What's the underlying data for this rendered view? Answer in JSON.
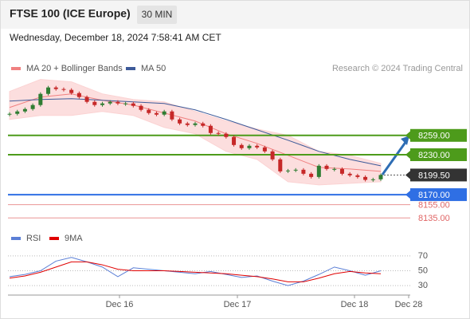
{
  "header": {
    "title": "FTSE 100 (ICE Europe)",
    "interval": "30 MIN",
    "timestamp": "Wednesday, December 18, 2024 7:58:41 AM CET"
  },
  "source": "Research © 2024 Trading Central",
  "xticks": [
    "Dec 16",
    "Dec 17",
    "Dec 18",
    "Dec 28"
  ],
  "chart_data": [
    {
      "type": "candlestick",
      "up_color": "#2f7d32",
      "down_color": "#c62828",
      "close": [
        8291.4,
        8295,
        8298.6,
        8304.6,
        8321.4,
        8331,
        8328.6,
        8327.4,
        8322.6,
        8316.6,
        8309.4,
        8304.6,
        8307,
        8309.4,
        8307,
        8307,
        8303.4,
        8297.4,
        8292.6,
        8290.2,
        8295,
        8283,
        8277,
        8274.6,
        8277,
        8273.4,
        8262.6,
        8261.4,
        8256.6,
        8244.6,
        8239.8,
        8243.4,
        8241,
        8235,
        8223,
        8205,
        8206.2,
        8207.4,
        8201.4,
        8196.6,
        8213.4,
        8208.6,
        8208.6,
        8201.4,
        8199,
        8196.6,
        8192.2,
        8193,
        8199.5
      ],
      "bands": {
        "name": "MA 20 + Bollinger Bands",
        "color": "#f08080",
        "band_color": "#fbd3d3",
        "ma": [
          8301,
          8316.6,
          8321.4,
          8311.8,
          8304.6,
          8292.6,
          8280.6,
          8261.4,
          8247,
          8229,
          8211,
          8208.6,
          8205
        ],
        "upper": [
          8325,
          8343,
          8339.4,
          8321.4,
          8313,
          8309.4,
          8295,
          8280.6,
          8268.6,
          8259,
          8235,
          8229,
          8217
        ],
        "lower": [
          8283,
          8289,
          8289,
          8295,
          8289,
          8271,
          8261.4,
          8235,
          8223,
          8189.4,
          8184.6,
          8187,
          8189.4
        ]
      },
      "ma50": {
        "name": "MA 50",
        "color": "#3d5a99",
        "values": [
          8310.6,
          8313,
          8314.2,
          8311.8,
          8309.4,
          8307,
          8297.4,
          8283,
          8267.4,
          8251.8,
          8235,
          8223,
          8213.4
        ]
      },
      "ylim": [
        8100,
        8345
      ],
      "levels": {
        "values": [
          8259,
          8230,
          8170,
          8155,
          8135
        ],
        "value_labels": [
          "8259.00",
          "8230.00",
          "8170.00",
          "8155.00",
          "8135.00"
        ],
        "colors": [
          "#4d9b1b",
          "#4d9b1b",
          "#2f6fe4",
          "#e06666",
          "#e06666"
        ],
        "boxed": [
          true,
          true,
          true,
          false,
          false
        ]
      },
      "last": {
        "value": 8199.5,
        "label": "8199.50",
        "color": "#333333"
      }
    },
    {
      "type": "line",
      "series": [
        {
          "name": "RSI",
          "color": "#5b7fd6",
          "values": [
            42,
            45,
            50,
            63,
            68,
            62,
            55,
            42,
            54,
            52,
            50,
            48,
            46,
            49,
            45,
            41,
            43,
            36,
            30,
            36,
            45,
            55,
            50,
            44,
            50
          ]
        },
        {
          "name": "9MA",
          "color": "#e00000",
          "values": [
            40,
            43,
            48,
            55,
            62,
            62,
            58,
            52,
            50,
            50,
            50,
            49,
            48,
            47,
            46,
            44,
            42,
            39,
            35,
            35,
            40,
            46,
            49,
            47,
            46
          ]
        }
      ],
      "ylim": [
        15,
        85
      ],
      "yticks": [
        30,
        50,
        70
      ],
      "grid": true
    }
  ]
}
